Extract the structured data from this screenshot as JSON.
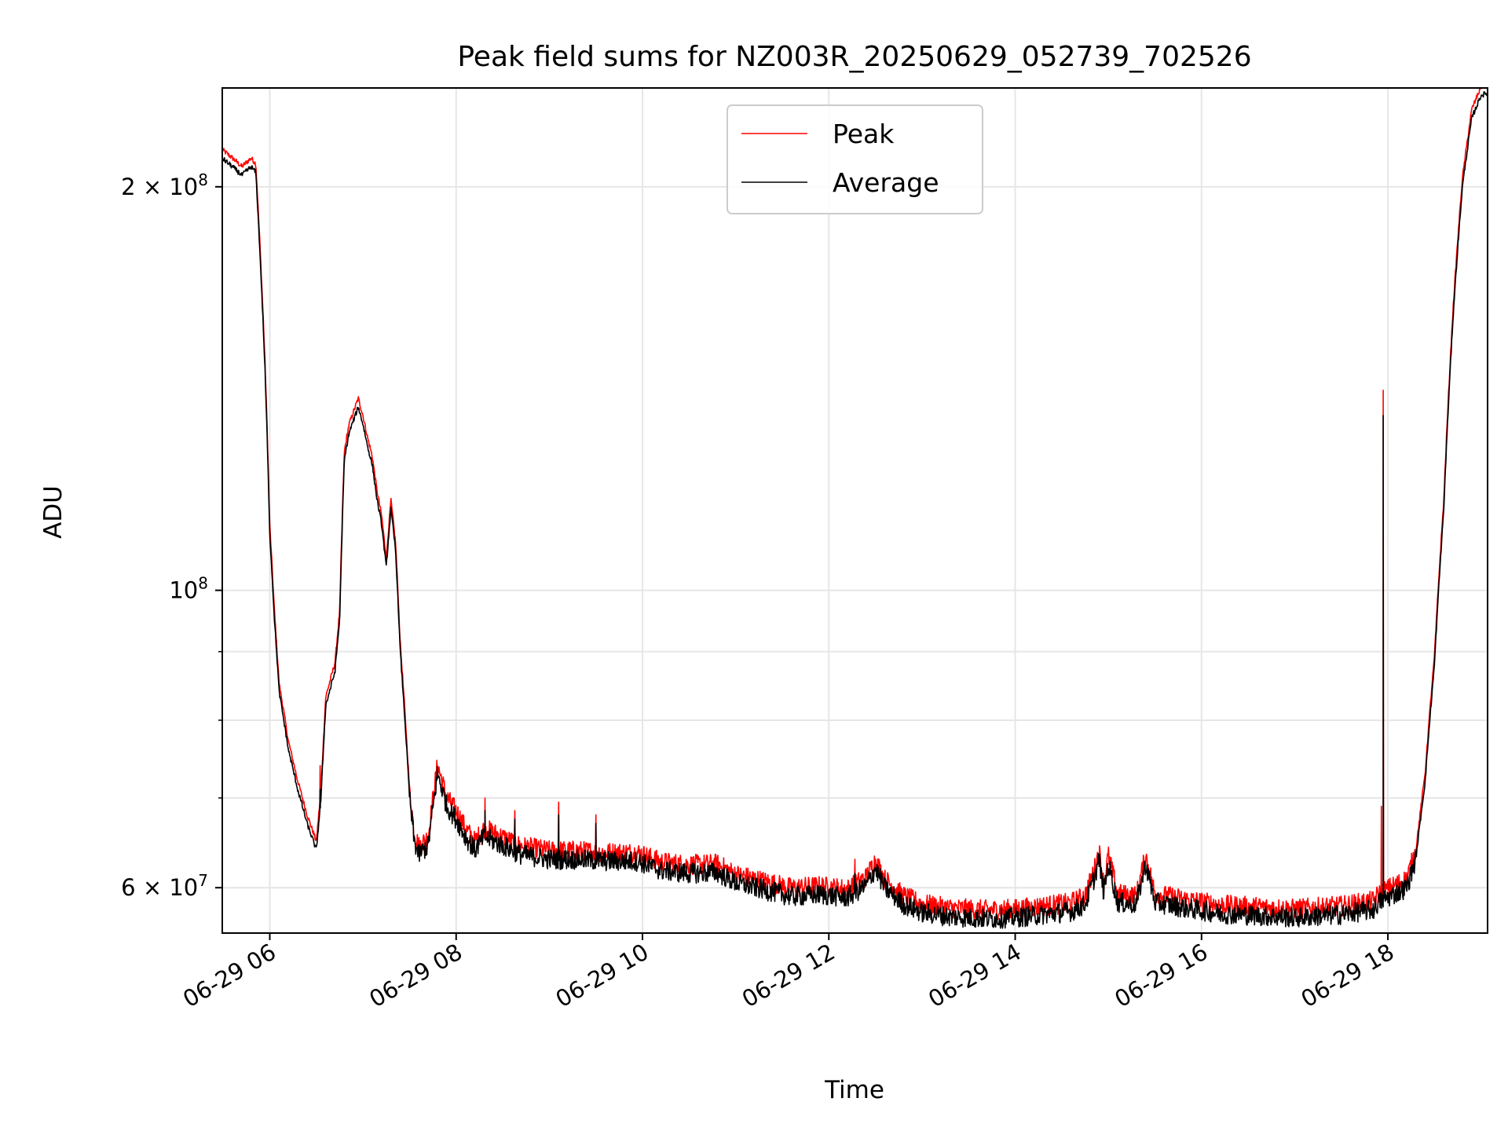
{
  "chart_data": {
    "type": "line",
    "title": "Peak field sums for NZ003R_20250629_052739_702526",
    "xlabel": "Time",
    "ylabel": "ADU",
    "x_unit": "hours (of 2025-06-29)",
    "xlim": [
      5.49,
      19.07
    ],
    "ylim": [
      55500000,
      237000000
    ],
    "yscale": "log",
    "grid": true,
    "legend_position": "upper center",
    "x_ticks": [
      {
        "value": 6,
        "label": "06-29 06"
      },
      {
        "value": 8,
        "label": "06-29 08"
      },
      {
        "value": 10,
        "label": "06-29 10"
      },
      {
        "value": 12,
        "label": "06-29 12"
      },
      {
        "value": 14,
        "label": "06-29 14"
      },
      {
        "value": 16,
        "label": "06-29 16"
      },
      {
        "value": 18,
        "label": "06-29 18"
      }
    ],
    "y_ticks": [
      {
        "value": 60000000,
        "base": "6 × 10",
        "exp": "7"
      },
      {
        "value": 100000000,
        "base": "10",
        "exp": "8"
      },
      {
        "value": 200000000,
        "base": "2 × 10",
        "exp": "8"
      }
    ],
    "y_minor_ticks": [
      70000000,
      80000000,
      90000000
    ],
    "series": [
      {
        "name": "Peak",
        "color": "#ff0000",
        "spikes": [
          {
            "x": 6.54,
            "y": 74000000
          },
          {
            "x": 8.31,
            "y": 70000000
          },
          {
            "x": 8.63,
            "y": 68500000
          },
          {
            "x": 9.1,
            "y": 69500000
          },
          {
            "x": 9.5,
            "y": 68000000
          },
          {
            "x": 12.28,
            "y": 63000000
          },
          {
            "x": 17.93,
            "y": 69000000
          },
          {
            "x": 17.95,
            "y": 141000000
          }
        ]
      },
      {
        "name": "Average",
        "color": "#000000",
        "points": [
          [
            5.49,
            210000000
          ],
          [
            5.6,
            207000000
          ],
          [
            5.7,
            204000000
          ],
          [
            5.8,
            207000000
          ],
          [
            5.85,
            205000000
          ],
          [
            5.9,
            175000000
          ],
          [
            5.95,
            145000000
          ],
          [
            6.0,
            110000000
          ],
          [
            6.05,
            95000000
          ],
          [
            6.1,
            84000000
          ],
          [
            6.2,
            76000000
          ],
          [
            6.3,
            71000000
          ],
          [
            6.4,
            67000000
          ],
          [
            6.5,
            64000000
          ],
          [
            6.55,
            70000000
          ],
          [
            6.6,
            82000000
          ],
          [
            6.7,
            87000000
          ],
          [
            6.75,
            95000000
          ],
          [
            6.8,
            125000000
          ],
          [
            6.85,
            131000000
          ],
          [
            6.9,
            134000000
          ],
          [
            6.95,
            137000000
          ],
          [
            7.0,
            133000000
          ],
          [
            7.05,
            128000000
          ],
          [
            7.1,
            124000000
          ],
          [
            7.15,
            117000000
          ],
          [
            7.2,
            112000000
          ],
          [
            7.25,
            104000000
          ],
          [
            7.3,
            115000000
          ],
          [
            7.35,
            107000000
          ],
          [
            7.4,
            90000000
          ],
          [
            7.45,
            80000000
          ],
          [
            7.5,
            70000000
          ],
          [
            7.55,
            65000000
          ],
          [
            7.6,
            63500000
          ],
          [
            7.7,
            64500000
          ],
          [
            7.8,
            73000000
          ],
          [
            7.9,
            69000000
          ],
          [
            8.0,
            67500000
          ],
          [
            8.1,
            65500000
          ],
          [
            8.2,
            64000000
          ],
          [
            8.3,
            65500000
          ],
          [
            8.5,
            64500000
          ],
          [
            8.7,
            63500000
          ],
          [
            9.0,
            63000000
          ],
          [
            9.3,
            63000000
          ],
          [
            9.6,
            62800000
          ],
          [
            9.95,
            62800000
          ],
          [
            10.2,
            61800000
          ],
          [
            10.5,
            61500000
          ],
          [
            10.8,
            61600000
          ],
          [
            11.0,
            60500000
          ],
          [
            11.3,
            59800000
          ],
          [
            11.6,
            59100000
          ],
          [
            11.9,
            59300000
          ],
          [
            12.2,
            59000000
          ],
          [
            12.4,
            60200000
          ],
          [
            12.5,
            62000000
          ],
          [
            12.6,
            60000000
          ],
          [
            12.8,
            58300000
          ],
          [
            13.0,
            57500000
          ],
          [
            13.3,
            57100000
          ],
          [
            13.7,
            56900000
          ],
          [
            14.0,
            57000000
          ],
          [
            14.3,
            57300000
          ],
          [
            14.6,
            57600000
          ],
          [
            14.75,
            58300000
          ],
          [
            14.85,
            61000000
          ],
          [
            14.9,
            63000000
          ],
          [
            14.95,
            59500000
          ],
          [
            15.0,
            62500000
          ],
          [
            15.1,
            58500000
          ],
          [
            15.3,
            58300000
          ],
          [
            15.4,
            62500000
          ],
          [
            15.5,
            58500000
          ],
          [
            15.8,
            58000000
          ],
          [
            16.2,
            57400000
          ],
          [
            16.6,
            57200000
          ],
          [
            17.0,
            57000000
          ],
          [
            17.5,
            57300000
          ],
          [
            17.85,
            57800000
          ],
          [
            17.9,
            58500000
          ],
          [
            18.0,
            59000000
          ],
          [
            18.1,
            59500000
          ],
          [
            18.2,
            60000000
          ],
          [
            18.3,
            63000000
          ],
          [
            18.4,
            72000000
          ],
          [
            18.5,
            88000000
          ],
          [
            18.6,
            115000000
          ],
          [
            18.7,
            160000000
          ],
          [
            18.8,
            200000000
          ],
          [
            18.9,
            225000000
          ],
          [
            19.0,
            234000000
          ],
          [
            19.07,
            235000000
          ]
        ],
        "spikes": [
          {
            "x": 6.54,
            "y": 71000000
          },
          {
            "x": 8.31,
            "y": 68500000
          },
          {
            "x": 8.63,
            "y": 67500000
          },
          {
            "x": 9.1,
            "y": 68000000
          },
          {
            "x": 9.5,
            "y": 67000000
          },
          {
            "x": 12.28,
            "y": 61500000
          },
          {
            "x": 17.95,
            "y": 135000000
          }
        ]
      }
    ]
  }
}
